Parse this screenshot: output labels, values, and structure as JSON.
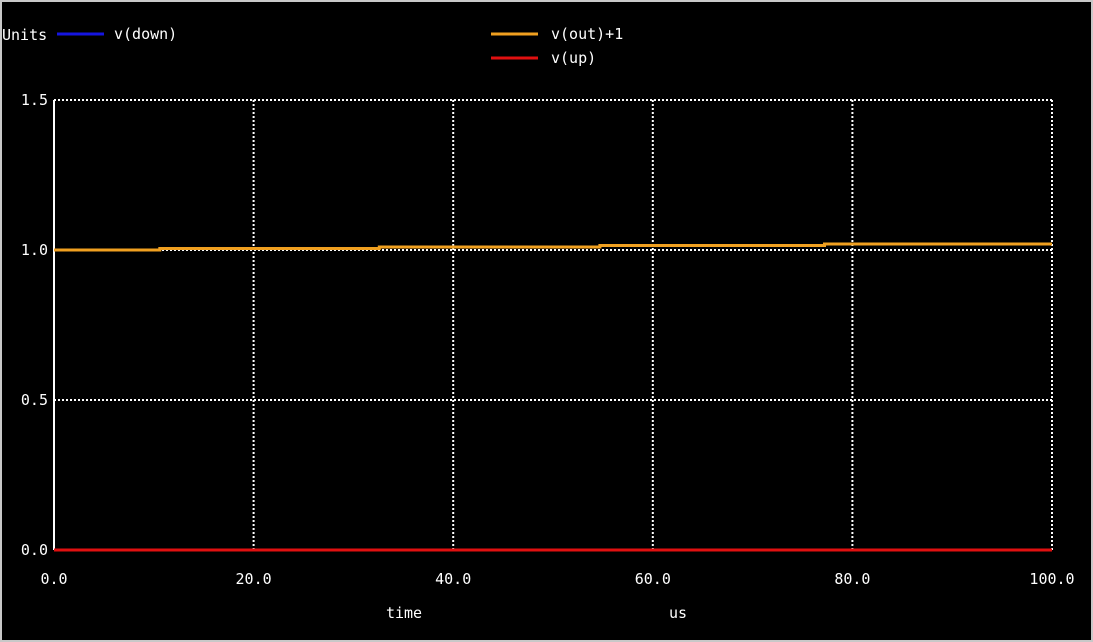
{
  "chart_data": {
    "type": "line",
    "ylabel": "Units",
    "xlabel": "time",
    "xunit": "us",
    "xlim": [
      0,
      100
    ],
    "ylim": [
      0,
      1.5
    ],
    "xticks": [
      "0.0",
      "20.0",
      "40.0",
      "60.0",
      "80.0",
      "100.0"
    ],
    "xtick_values": [
      0,
      20,
      40,
      60,
      80,
      100
    ],
    "yticks": [
      "0.0",
      "0.5",
      "1.0",
      "1.5"
    ],
    "ytick_values": [
      0,
      0.5,
      1.0,
      1.5
    ],
    "grid": true,
    "legend_position": "top",
    "colors": {
      "background": "#000000",
      "axes": "#ffffff",
      "grid": "#ffffff",
      "frame": "#c8c8c8"
    },
    "series": [
      {
        "name": "v(down)",
        "color": "#1515e0",
        "x": [
          0,
          100
        ],
        "y": [
          0,
          0
        ]
      },
      {
        "name": "v(out)+1",
        "color": "#f0a020",
        "x": [
          0,
          10.6,
          10.6,
          32.6,
          32.6,
          54.7,
          54.7,
          77.2,
          77.2,
          100
        ],
        "y": [
          1.0,
          1.0,
          1.005,
          1.005,
          1.01,
          1.01,
          1.015,
          1.015,
          1.02,
          1.02
        ]
      },
      {
        "name": "v(up)",
        "color": "#e01010",
        "x": [
          0,
          100
        ],
        "y": [
          0,
          0
        ]
      }
    ]
  }
}
